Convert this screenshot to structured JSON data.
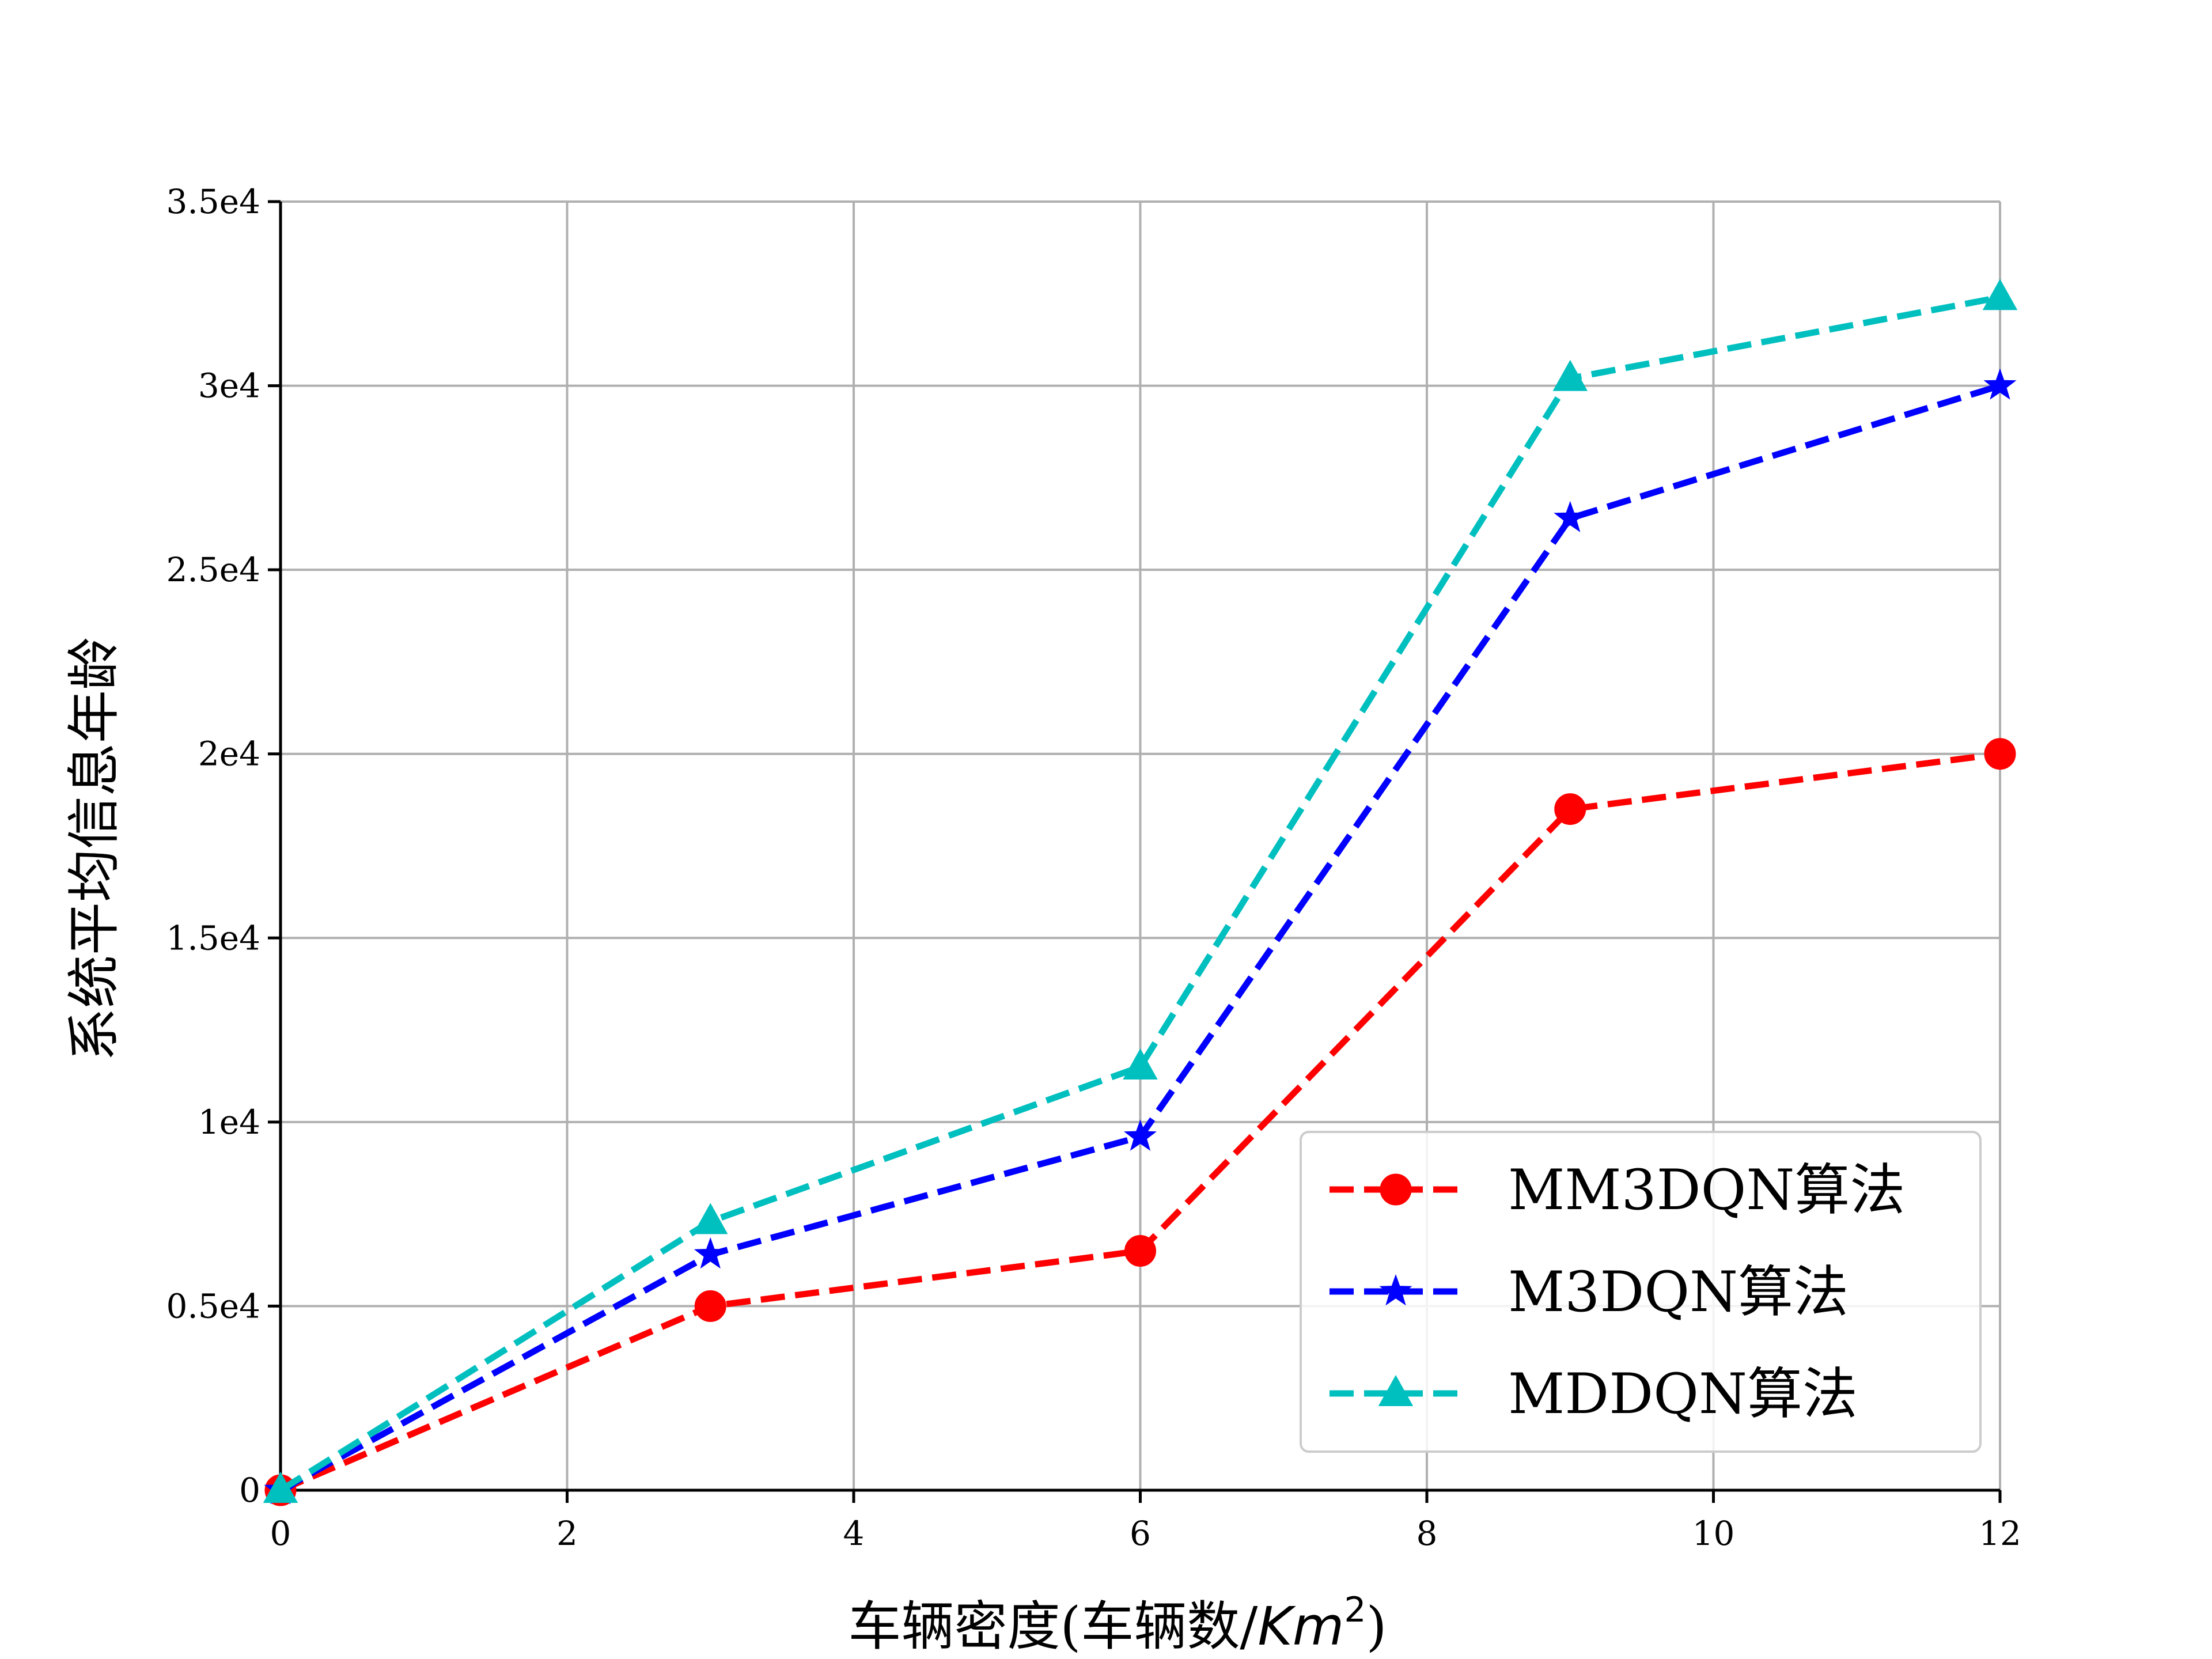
{
  "chart_data": {
    "type": "line",
    "title": "",
    "xlabel_main": "车辆密度(车辆数/",
    "xlabel_unit": "Km",
    "xlabel_exp": "2",
    "xlabel_close": ")",
    "ylabel": "系统平均信息年龄",
    "xlim": [
      0,
      12
    ],
    "ylim": [
      0,
      35000
    ],
    "x_ticks": [
      0,
      2,
      4,
      6,
      8,
      10,
      12
    ],
    "x_tick_labels": [
      "0",
      "2",
      "4",
      "6",
      "8",
      "10",
      "12"
    ],
    "y_ticks": [
      0,
      5000,
      10000,
      15000,
      20000,
      25000,
      30000,
      35000
    ],
    "y_tick_labels": [
      "0",
      "0.5e4",
      "1e4",
      "1.5e4",
      "2e4",
      "2.5e4",
      "3e4",
      "3.5e4"
    ],
    "grid": true,
    "legend_position": "lower-right",
    "x": [
      0,
      3,
      6,
      9,
      12
    ],
    "series": [
      {
        "name": "MM3DQN算法",
        "color": "#ff0000",
        "marker": "circle",
        "values": [
          0,
          5000,
          6500,
          18500,
          20000
        ]
      },
      {
        "name": "M3DQN算法",
        "color": "#0000ff",
        "marker": "star",
        "values": [
          0,
          6400,
          9600,
          26400,
          30000
        ]
      },
      {
        "name": "MDDQN算法",
        "color": "#00bfbf",
        "marker": "triangle",
        "values": [
          0,
          7300,
          11500,
          30200,
          32400
        ]
      }
    ]
  }
}
